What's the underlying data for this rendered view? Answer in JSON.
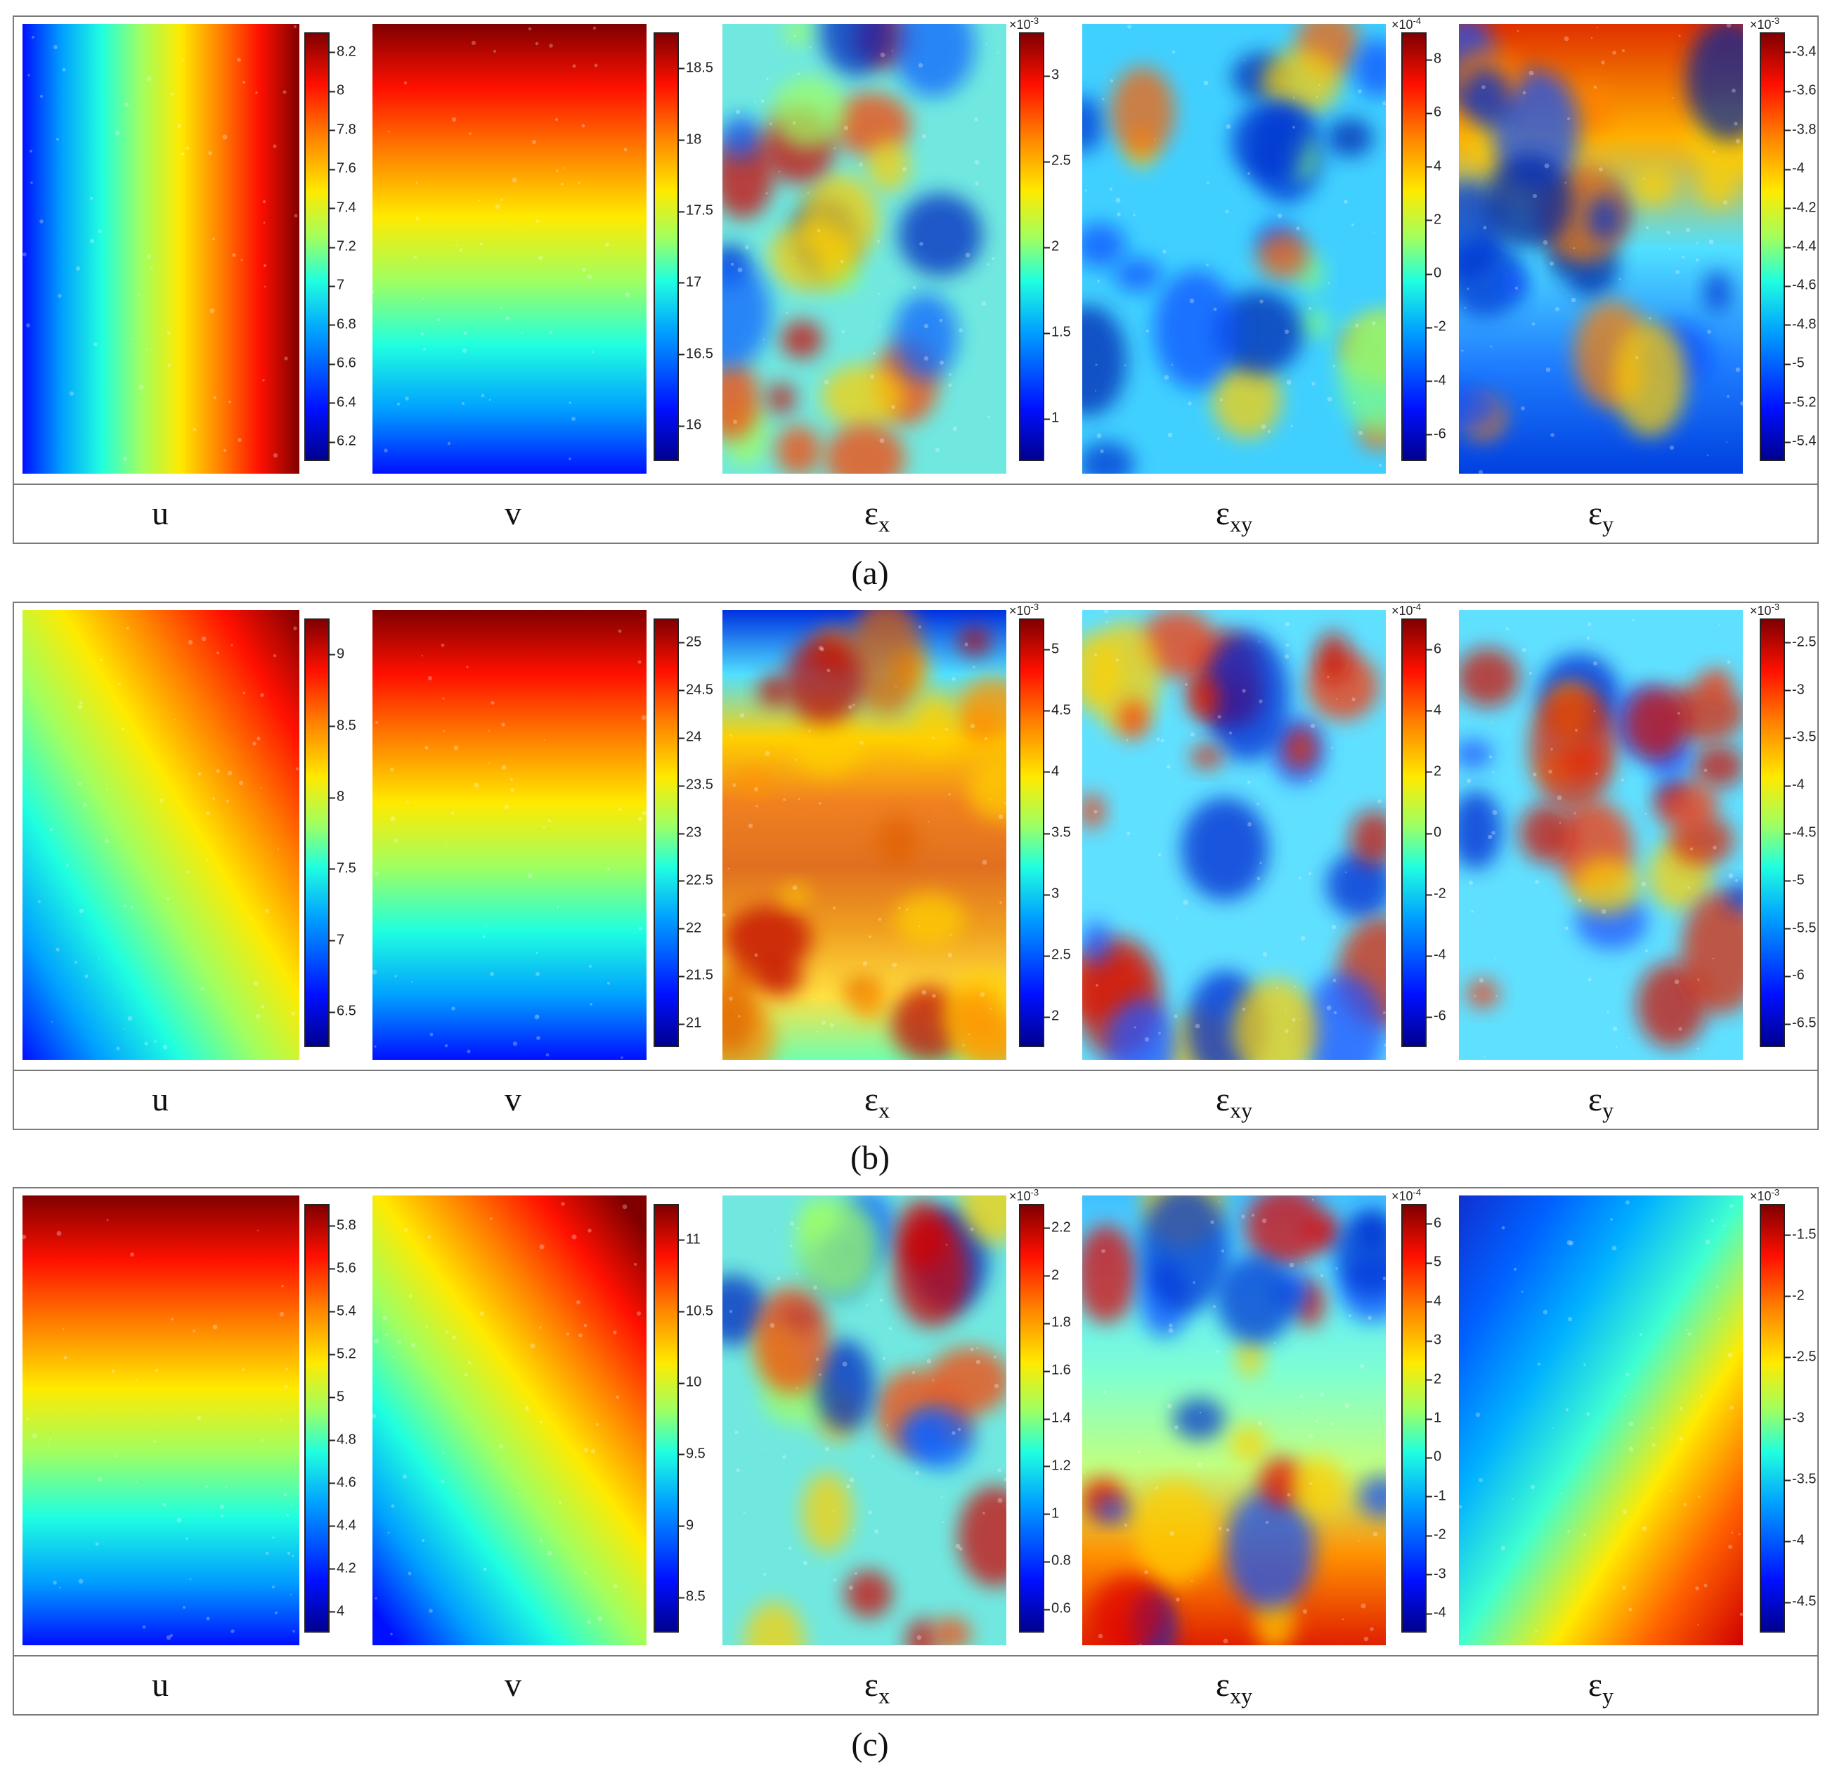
{
  "panels": [
    {
      "caption": "(a)",
      "columns": [
        {
          "label_main": "u",
          "label_sub": "",
          "exponent": "",
          "ticks": [
            "8.2",
            "8",
            "7.8",
            "7.6",
            "7.4",
            "7.2",
            "7",
            "6.8",
            "6.6",
            "6.4",
            "6.2"
          ],
          "field": "grad-x"
        },
        {
          "label_main": "v",
          "label_sub": "",
          "exponent": "",
          "ticks": [
            "18.5",
            "18",
            "17.5",
            "17",
            "16.5",
            "16"
          ],
          "field": "grad-y-down"
        },
        {
          "label_main": "ε",
          "label_sub": "x",
          "exponent": "×10-3",
          "ticks": [
            "3",
            "2.5",
            "2",
            "1.5",
            "1"
          ],
          "field": "blobs"
        },
        {
          "label_main": "ε",
          "label_sub": "xy",
          "exponent": "×10-4",
          "ticks": [
            "8",
            "6",
            "4",
            "2",
            "0",
            "-2",
            "-4",
            "-6"
          ],
          "field": "blobs-cool"
        },
        {
          "label_main": "ε",
          "label_sub": "y",
          "exponent": "×10-3",
          "ticks": [
            "-3.4",
            "-3.6",
            "-3.8",
            "-4",
            "-4.2",
            "-4.4",
            "-4.6",
            "-4.8",
            "-5",
            "-5.2",
            "-5.4"
          ],
          "field": "blobs-top-warm"
        }
      ]
    },
    {
      "caption": "(b)",
      "columns": [
        {
          "label_main": "u",
          "label_sub": "",
          "exponent": "",
          "ticks": [
            "9",
            "8.5",
            "8",
            "7.5",
            "7",
            "6.5"
          ],
          "field": "grad-diag"
        },
        {
          "label_main": "v",
          "label_sub": "",
          "exponent": "",
          "ticks": [
            "25",
            "24.5",
            "24",
            "23.5",
            "23",
            "22.5",
            "22",
            "21.5",
            "21"
          ],
          "field": "grad-y-down"
        },
        {
          "label_main": "ε",
          "label_sub": "x",
          "exponent": "×10-3",
          "ticks": [
            "5",
            "4.5",
            "4",
            "3.5",
            "3",
            "2.5",
            "2"
          ],
          "field": "band-warm"
        },
        {
          "label_main": "ε",
          "label_sub": "xy",
          "exponent": "×10-4",
          "ticks": [
            "6",
            "4",
            "2",
            "0",
            "-2",
            "-4",
            "-6"
          ],
          "field": "blobs-warm"
        },
        {
          "label_main": "ε",
          "label_sub": "y",
          "exponent": "×10-3",
          "ticks": [
            "-2.5",
            "-3",
            "-3.5",
            "-4",
            "-4.5",
            "-5",
            "-5.5",
            "-6",
            "-6.5"
          ],
          "field": "blobs-warm"
        }
      ]
    },
    {
      "caption": "(c)",
      "columns": [
        {
          "label_main": "u",
          "label_sub": "",
          "exponent": "",
          "ticks": [
            "5.8",
            "5.6",
            "5.4",
            "5.2",
            "5",
            "4.8",
            "4.6",
            "4.4",
            "4.2",
            "4"
          ],
          "field": "grad-y-down"
        },
        {
          "label_main": "v",
          "label_sub": "",
          "exponent": "",
          "ticks": [
            "11",
            "10.5",
            "10",
            "9.5",
            "9",
            "8.5"
          ],
          "field": "grad-diag2"
        },
        {
          "label_main": "ε",
          "label_sub": "x",
          "exponent": "×10-3",
          "ticks": [
            "2.2",
            "2",
            "1.8",
            "1.6",
            "1.4",
            "1.2",
            "1",
            "0.8",
            "0.6"
          ],
          "field": "blobs"
        },
        {
          "label_main": "ε",
          "label_sub": "xy",
          "exponent": "×10-4",
          "ticks": [
            "6",
            "5",
            "4",
            "3",
            "2",
            "1",
            "0",
            "-1",
            "-2",
            "-3",
            "-4"
          ],
          "field": "bottom-warm"
        },
        {
          "label_main": "ε",
          "label_sub": "y",
          "exponent": "×10-3",
          "ticks": [
            "-1.5",
            "-2",
            "-2.5",
            "-3",
            "-3.5",
            "-4",
            "-4.5"
          ],
          "field": "grad-diag3"
        }
      ]
    }
  ]
}
